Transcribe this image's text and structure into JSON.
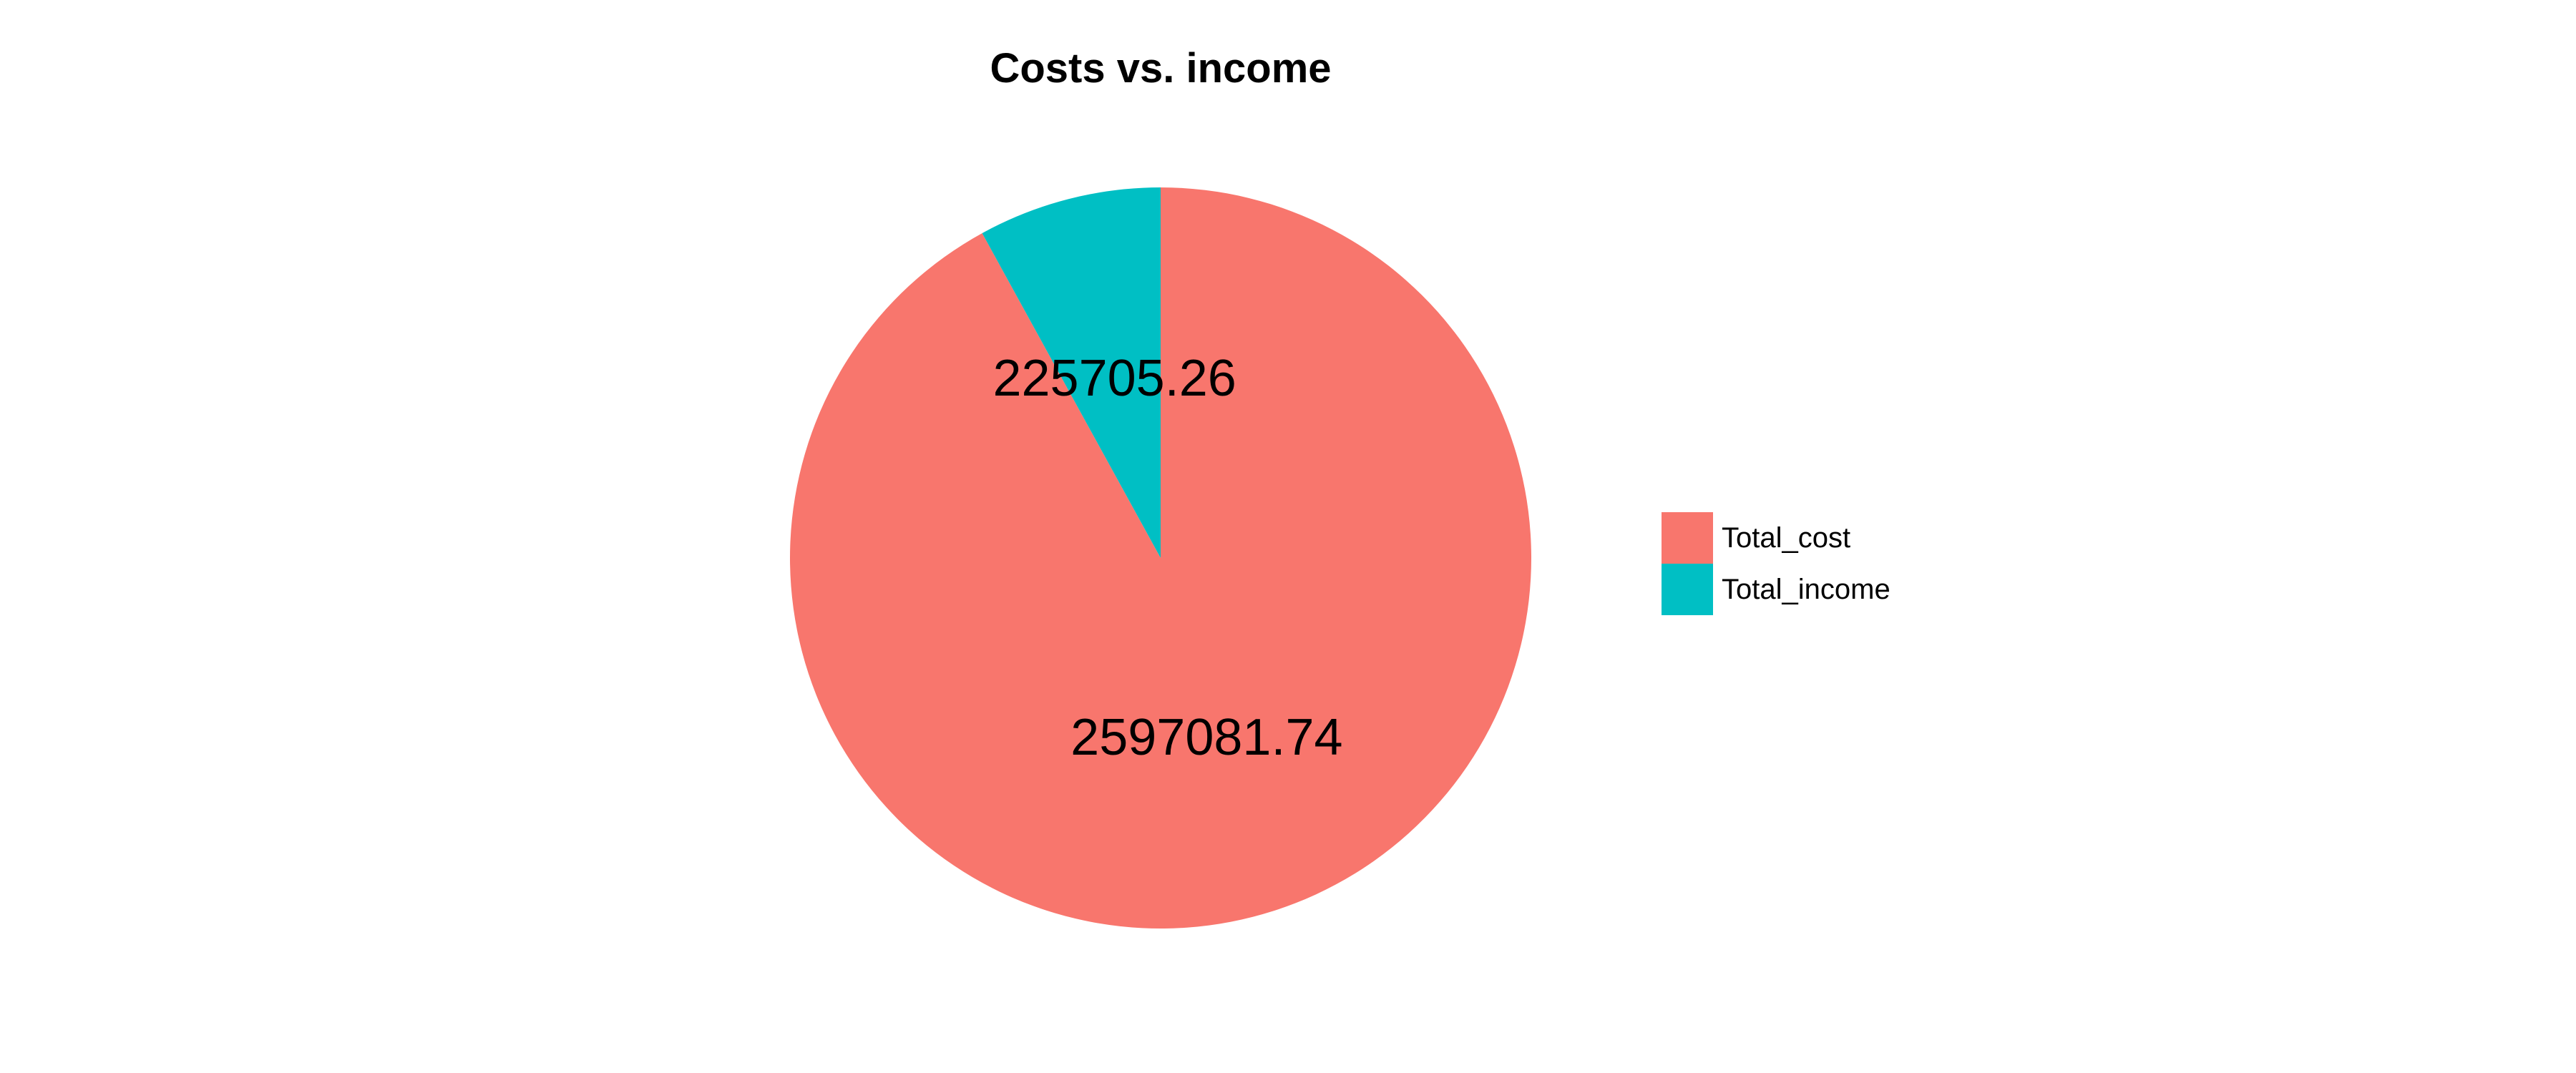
{
  "chart_data": {
    "type": "pie",
    "title": "Costs vs. income",
    "categories": [
      "Total_cost",
      "Total_income"
    ],
    "values": [
      2597081.74,
      225705.26
    ],
    "labels": [
      "2597081.74",
      "225705.26"
    ],
    "colors": [
      "#F8766D",
      "#00BFC4"
    ],
    "legend": {
      "placement": "right",
      "entries": [
        "Total_cost",
        "Total_income"
      ]
    }
  }
}
